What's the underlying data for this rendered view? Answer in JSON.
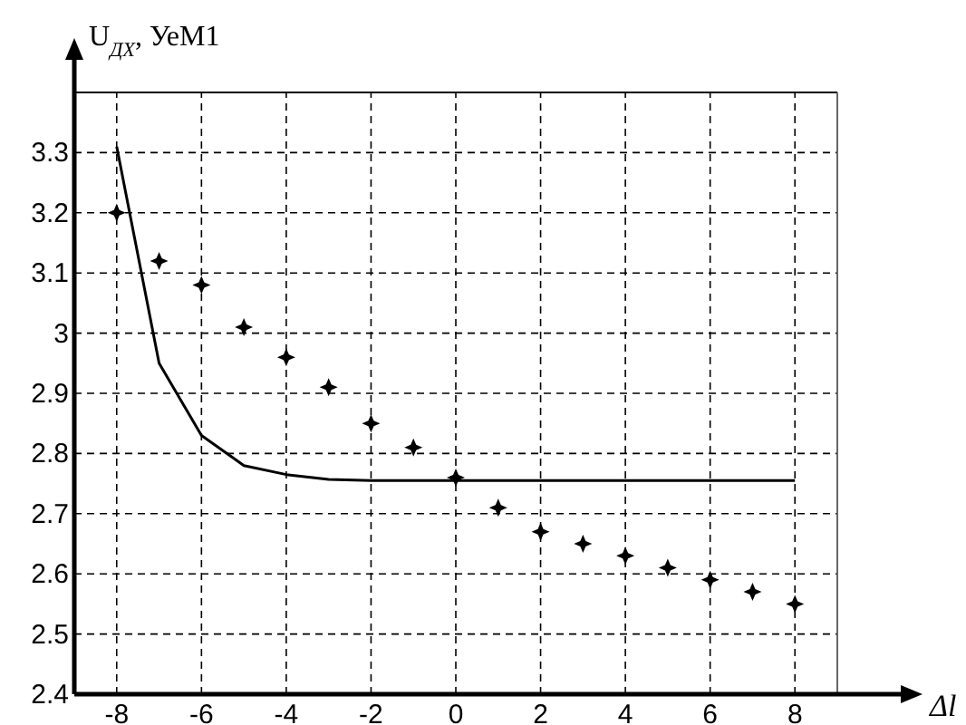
{
  "chart_data": {
    "type": "scatter",
    "ylabel": "U$_{ДХ}$, УеМ1",
    "xlabel": "Δl",
    "xlim": [
      -9,
      9
    ],
    "xticks": [
      -8,
      -6,
      -4,
      -2,
      0,
      2,
      4,
      6,
      8
    ],
    "ylim": [
      2.4,
      3.4
    ],
    "yticks": [
      2.4,
      2.5,
      2.6,
      2.7,
      2.8,
      2.9,
      3,
      3.1,
      3.2,
      3.3
    ],
    "grid": true,
    "series": [
      {
        "type": "line",
        "color": "#000000",
        "marker": "none",
        "line_style": "solid",
        "x": [
          -8,
          -7,
          -6,
          -5,
          -4,
          -3,
          -2,
          -1,
          0,
          1,
          2,
          3,
          4,
          5,
          6,
          7,
          8
        ],
        "values": [
          3.31,
          2.95,
          2.83,
          2.78,
          2.765,
          2.757,
          2.755,
          2.755,
          2.755,
          2.755,
          2.755,
          2.755,
          2.755,
          2.755,
          2.755,
          2.755,
          2.755
        ]
      },
      {
        "color": "#000000",
        "marker": "star",
        "x": [
          -8,
          -7,
          -6,
          -5,
          -4,
          -3,
          -2,
          -1,
          0,
          1,
          2,
          3,
          4,
          5,
          6,
          7,
          8
        ],
        "values": [
          3.2,
          3.12,
          3.08,
          3.01,
          2.96,
          2.91,
          2.85,
          2.81,
          2.76,
          2.71,
          2.67,
          2.65,
          2.63,
          2.61,
          2.59,
          2.57,
          2.55
        ]
      }
    ]
  }
}
